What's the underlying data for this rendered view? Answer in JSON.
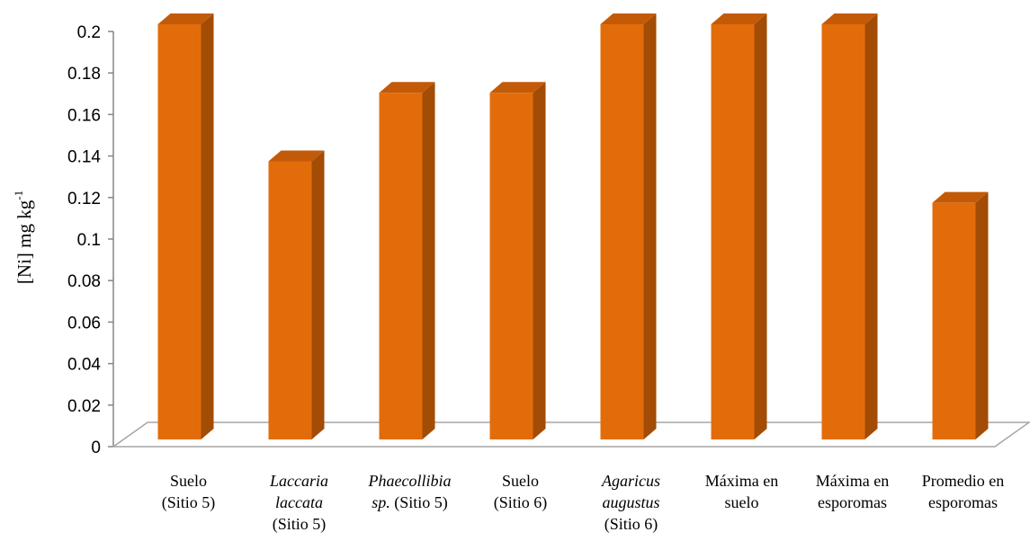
{
  "chart_data": {
    "type": "bar",
    "style": "3d-column",
    "ylabel": "[Ni] mg kg",
    "ylabel_superscript": "-1",
    "ylim": [
      0,
      0.2
    ],
    "yticks": [
      "0",
      "0.02",
      "0.04",
      "0.06",
      "0.08",
      "0.1",
      "0.12",
      "0.14",
      "0.16",
      "0.18",
      "0.2"
    ],
    "categories": [
      [
        "Suelo",
        "(Sitio 5)"
      ],
      [
        "Laccaria",
        "laccata",
        "(Sitio 5)"
      ],
      [
        "Phaecollibia",
        "sp. (Sitio 5)"
      ],
      [
        "Suelo",
        "(Sitio 6)"
      ],
      [
        "Agaricus",
        "augustus",
        "(Sitio 6)"
      ],
      [
        "Máxima en",
        "suelo"
      ],
      [
        "Máxima en",
        "esporomas"
      ],
      [
        "Promedio en",
        "esporomas"
      ]
    ],
    "values": [
      0.2,
      0.134,
      0.167,
      0.167,
      0.2,
      0.2,
      0.2,
      0.114
    ],
    "bar_color": "#E36C0A",
    "bar_side_color": "#A24C05",
    "bar_top_color": "#C35A08",
    "floor_color": "#A6A6A6",
    "grid": false,
    "legend": "none"
  }
}
